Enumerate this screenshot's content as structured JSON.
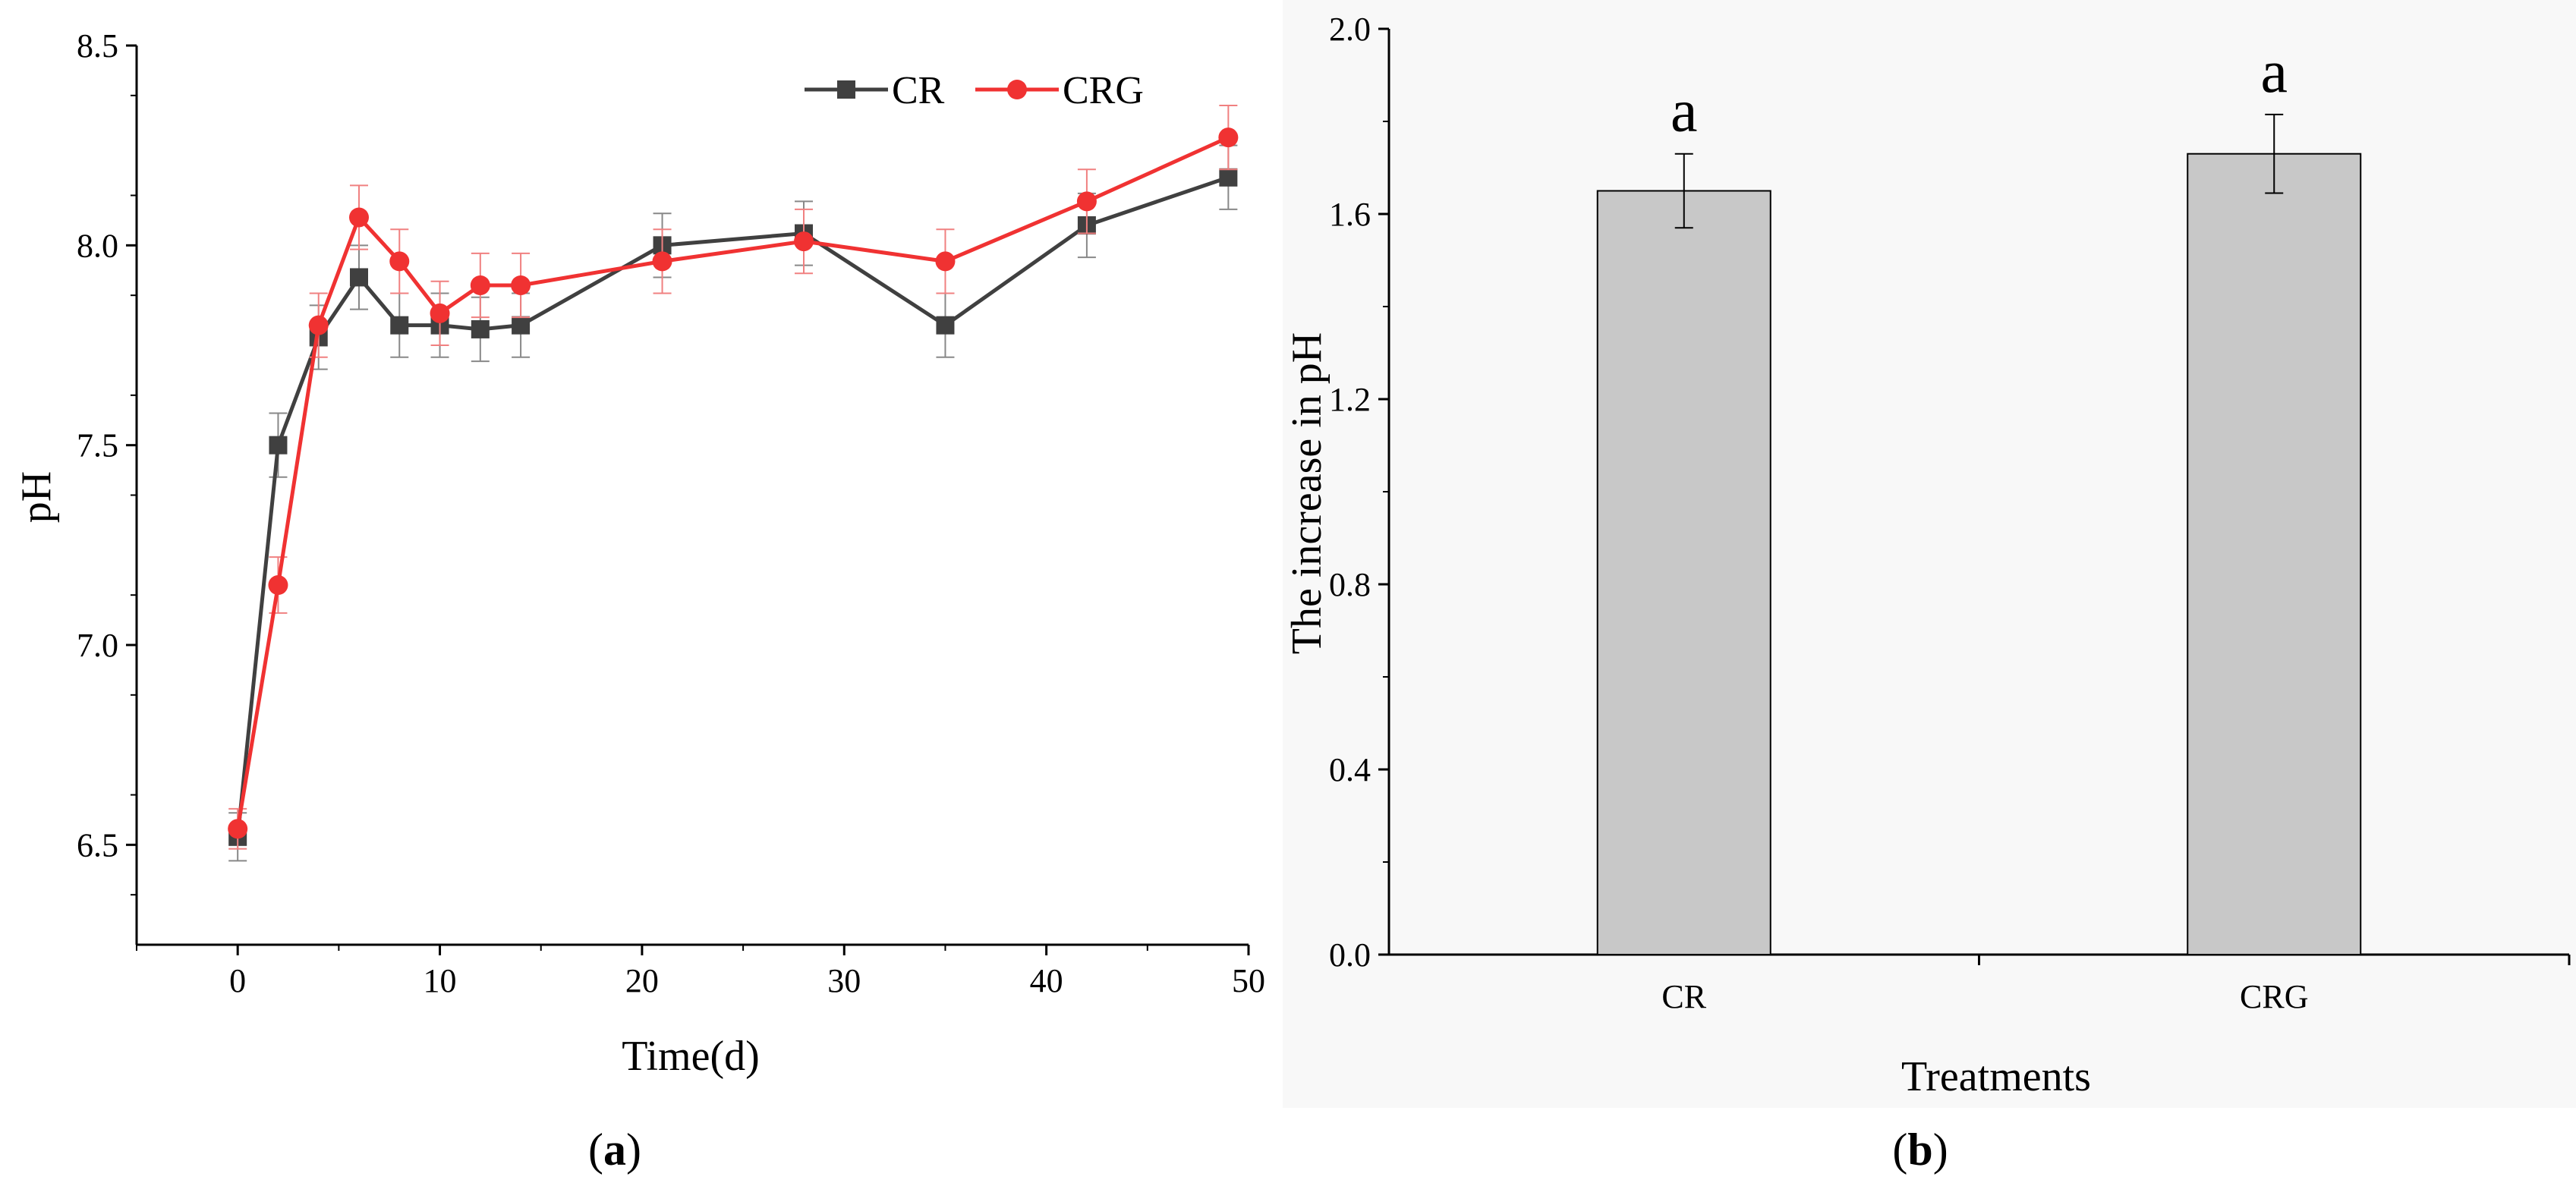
{
  "chart_data": [
    {
      "type": "line",
      "panel_label": "a",
      "xlabel": "Time(d)",
      "ylabel": "pH",
      "xlim": [
        -5,
        50
      ],
      "ylim": [
        6.25,
        8.5
      ],
      "xticks": [
        0,
        10,
        20,
        30,
        40,
        50
      ],
      "yticks": [
        6.5,
        7.0,
        7.5,
        8.0,
        8.5
      ],
      "legend_position": "top-right",
      "series": [
        {
          "name": "CR",
          "color": "#404040",
          "marker": "square",
          "x": [
            0,
            2,
            4,
            6,
            8,
            10,
            12,
            14,
            21,
            28,
            35,
            42,
            49
          ],
          "y": [
            6.52,
            7.5,
            7.77,
            7.92,
            7.8,
            7.8,
            7.79,
            7.8,
            8.0,
            8.03,
            7.8,
            8.05,
            8.17
          ],
          "err": [
            0.06,
            0.08,
            0.08,
            0.08,
            0.08,
            0.08,
            0.08,
            0.08,
            0.08,
            0.08,
            0.08,
            0.08,
            0.08
          ]
        },
        {
          "name": "CRG",
          "color": "#f03232",
          "marker": "circle",
          "x": [
            0,
            2,
            4,
            6,
            8,
            10,
            12,
            14,
            21,
            28,
            35,
            42,
            49
          ],
          "y": [
            6.54,
            7.15,
            7.8,
            8.07,
            7.96,
            7.83,
            7.9,
            7.9,
            7.96,
            8.01,
            7.96,
            8.11,
            8.27
          ],
          "err": [
            0.05,
            0.07,
            0.08,
            0.08,
            0.08,
            0.08,
            0.08,
            0.08,
            0.08,
            0.08,
            0.08,
            0.08,
            0.08
          ]
        }
      ]
    },
    {
      "type": "bar",
      "panel_label": "b",
      "xlabel": "Treatments",
      "ylabel": "The increase in pH",
      "ylim": [
        0,
        2.0
      ],
      "yticks": [
        "0.0",
        "0.4",
        "0.8",
        "1.2",
        "1.6",
        "2.0"
      ],
      "categories": [
        "CR",
        "CRG"
      ],
      "values": [
        1.65,
        1.73
      ],
      "err": [
        0.08,
        0.085
      ],
      "letters": [
        "a",
        "a"
      ],
      "bar_color": "#c8c8c8"
    }
  ]
}
